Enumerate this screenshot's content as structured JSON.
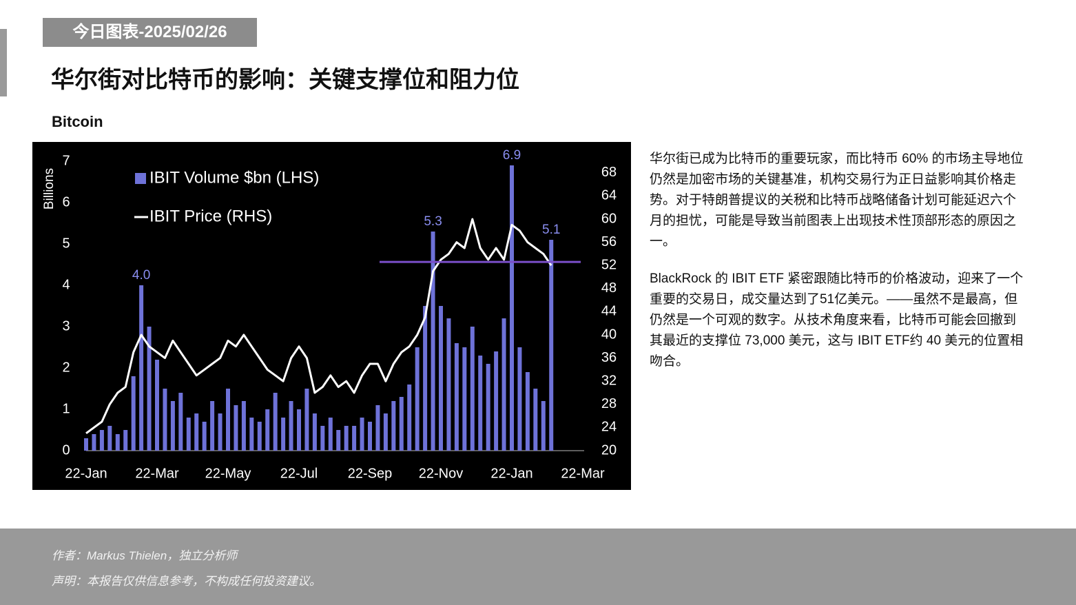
{
  "header": {
    "tag": "今日图表-2025/02/26",
    "title": "华尔街对比特币的影响：关键支撑位和阻力位"
  },
  "chart_data": {
    "type": "bar-line",
    "title": "Bitcoin",
    "ylabel": "Billions",
    "categories": [
      "22-Jan",
      null,
      null,
      null,
      null,
      null,
      null,
      null,
      null,
      "22-Mar",
      null,
      null,
      null,
      null,
      null,
      null,
      null,
      null,
      "22-May",
      null,
      null,
      null,
      null,
      null,
      null,
      null,
      null,
      "22-Jul",
      null,
      null,
      null,
      null,
      null,
      null,
      null,
      null,
      "22-Sep",
      null,
      null,
      null,
      null,
      null,
      null,
      null,
      null,
      "22-Nov",
      null,
      null,
      null,
      null,
      null,
      null,
      null,
      null,
      "22-Jan",
      null,
      null,
      null,
      null,
      null,
      null,
      null,
      null,
      "22-Mar"
    ],
    "series": [
      {
        "name": "IBIT Volume $bn (LHS)",
        "color": "#6e72d8",
        "values": [
          0.3,
          0.4,
          0.5,
          0.6,
          0.4,
          0.5,
          1.8,
          4.0,
          3.0,
          2.2,
          1.5,
          1.2,
          1.4,
          0.8,
          0.9,
          0.7,
          1.2,
          0.9,
          1.5,
          1.1,
          1.2,
          0.8,
          0.7,
          1.0,
          1.4,
          0.8,
          1.2,
          1.0,
          1.5,
          0.9,
          0.6,
          0.8,
          0.5,
          0.6,
          0.6,
          0.8,
          0.7,
          1.1,
          0.9,
          1.2,
          1.3,
          1.6,
          2.5,
          3.5,
          5.3,
          3.5,
          3.2,
          2.6,
          2.5,
          3.0,
          2.3,
          2.1,
          2.4,
          3.2,
          6.9,
          2.5,
          1.9,
          1.5,
          1.2,
          5.1,
          null,
          null,
          null,
          null
        ],
        "value_labels": [
          null,
          null,
          null,
          null,
          null,
          null,
          null,
          "4.0",
          null,
          null,
          null,
          null,
          null,
          null,
          null,
          null,
          null,
          null,
          null,
          null,
          null,
          null,
          null,
          null,
          null,
          null,
          null,
          null,
          null,
          null,
          null,
          null,
          null,
          null,
          null,
          null,
          null,
          null,
          null,
          null,
          null,
          null,
          null,
          null,
          "5.3",
          null,
          null,
          null,
          null,
          null,
          null,
          null,
          null,
          null,
          "6.9",
          null,
          null,
          null,
          null,
          "5.1",
          null,
          null,
          null,
          null
        ]
      },
      {
        "name": "IBIT Price (RHS)",
        "color": "#ffffff",
        "axis": "y2",
        "values": [
          23,
          24,
          25,
          28,
          30,
          31,
          37,
          40,
          38,
          37,
          36,
          39,
          37,
          35,
          33,
          34,
          35,
          36,
          39,
          38,
          40,
          38,
          36,
          34,
          33,
          32,
          36,
          38,
          36,
          30,
          31,
          33,
          31,
          32,
          30,
          33,
          35,
          35,
          32,
          35,
          37,
          38,
          40,
          43,
          51,
          53,
          54,
          56,
          55,
          60,
          55,
          53,
          55,
          53,
          59,
          58,
          56,
          55,
          54,
          52,
          null,
          null,
          null,
          null
        ]
      }
    ],
    "ylim": [
      0,
      7
    ],
    "yticks": [
      0,
      1,
      2,
      3,
      4,
      5,
      6,
      7
    ],
    "y2lim": [
      20,
      70
    ],
    "y2ticks": [
      20,
      24,
      28,
      32,
      36,
      40,
      44,
      48,
      52,
      56,
      60,
      64,
      68
    ],
    "resistance": 52.6,
    "resistance_color": "#7b4fc9"
  },
  "body": {
    "paragraphs": [
      "华尔街已成为比特币的重要玩家，而比特币 60% 的市场主导地位仍然是加密市场的关键基准，机构交易行为正日益影响其价格走势。对于特朗普提议的关税和比特币战略储备计划可能延迟六个月的担忧，可能是导致当前图表上出现技术性顶部形态的原因之一。",
      "BlackRock 的 IBIT ETF 紧密跟随比特币的价格波动，迎来了一个重要的交易日，成交量达到了51亿美元。——虽然不是最高，但仍然是一个可观的数字。从技术角度来看，比特币可能会回撤到其最近的支撑位 73,000 美元，这与 IBIT ETF约 40 美元的位置相吻合。"
    ]
  },
  "footer": {
    "author": "作者：Markus Thielen，独立分析师",
    "disclaimer": "声明：本报告仅供信息参考，不构成任何投资建议。"
  }
}
